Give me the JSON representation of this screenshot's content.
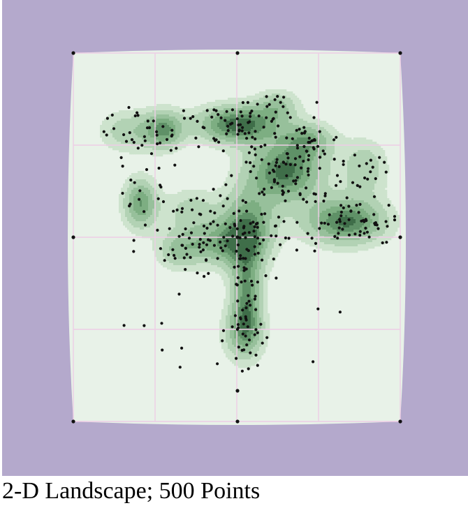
{
  "caption": "2-D Landscape; 500 Points",
  "colors": {
    "background": "#b4a9cc",
    "landscape_fill": "#e8f2e8",
    "grid_line": "#eecde6",
    "contour_levels": [
      "#cde3cd",
      "#b2d2b4",
      "#97c09b",
      "#7dae82",
      "#5f9167",
      "#3f6e49"
    ],
    "point": "#111111"
  },
  "landscape": {
    "point_count": 500,
    "grid_divisions": 4,
    "grid_lines": "on"
  }
}
